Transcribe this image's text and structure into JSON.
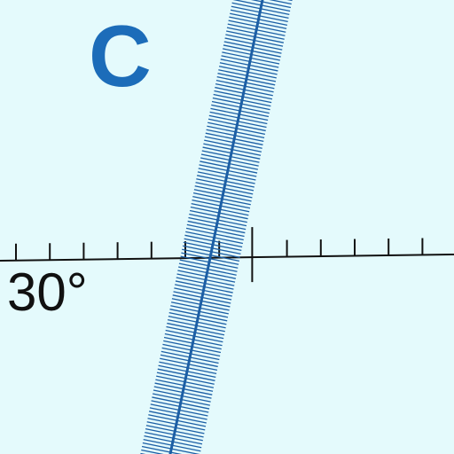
{
  "labels": {
    "letter": "C",
    "angle": "30°"
  },
  "reference_line": {
    "color": "#111111",
    "minor_tick_count": 13,
    "major_tick_count": 1
  },
  "rotated_scale": {
    "color": "#1c5fa5",
    "rung_count": 134
  },
  "colors": {
    "background": "#e4fafc",
    "letter": "#1c6cb9",
    "angle_text": "#111111"
  },
  "icons": {
    "horizontal_scale": "horizontal-tick-scale-icon",
    "rotated_scale": "rotated-ladder-scale-icon"
  }
}
